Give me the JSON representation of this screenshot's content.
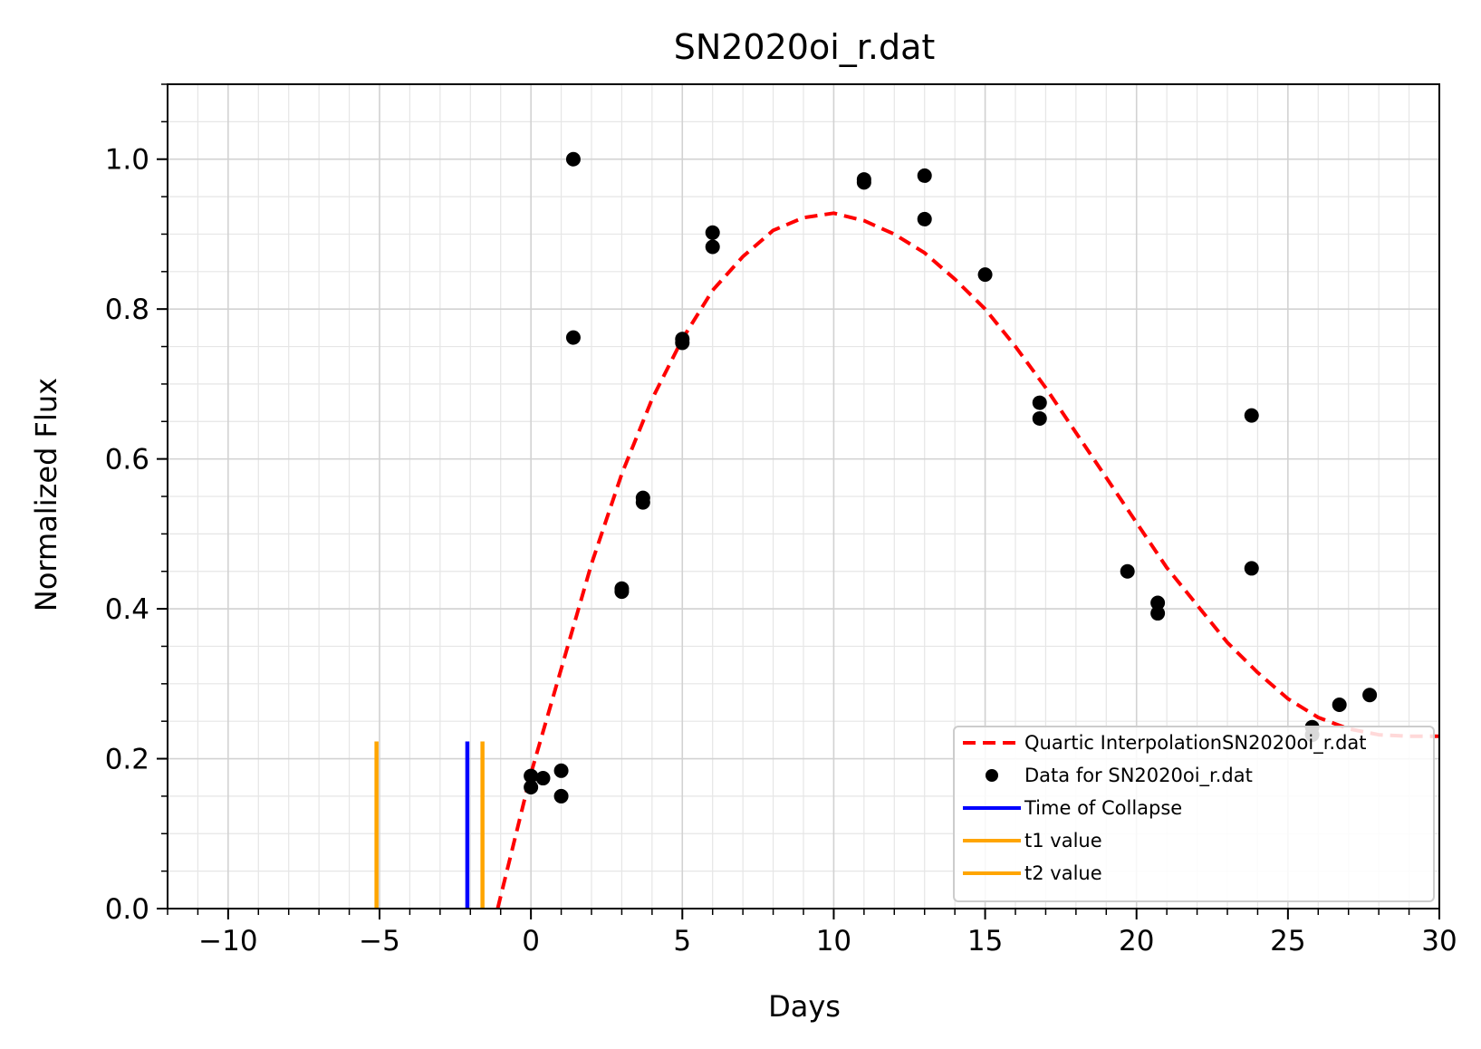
{
  "chart_data": {
    "type": "scatter",
    "title": "SN2020oi_r.dat",
    "xlabel": "Days",
    "ylabel": "Normalized Flux",
    "xlim": [
      -12,
      30
    ],
    "ylim": [
      0,
      1.1
    ],
    "x_ticks": [
      -10,
      -5,
      0,
      5,
      10,
      15,
      20,
      25,
      30
    ],
    "x_tick_labels": [
      "−10",
      "−5",
      "0",
      "5",
      "10",
      "15",
      "20",
      "25",
      "30"
    ],
    "y_ticks": [
      0.0,
      0.2,
      0.4,
      0.6,
      0.8,
      1.0
    ],
    "y_tick_labels": [
      "0.0",
      "0.2",
      "0.4",
      "0.6",
      "0.8",
      "1.0"
    ],
    "x_minor_step": 1,
    "y_minor_step": 0.05,
    "grid": true,
    "legend_position": "lower-right",
    "series": [
      {
        "name": "Quartic InterpolationSN2020oi_r.dat",
        "kind": "dashed-line",
        "color": "#ff0000",
        "x": [
          -1.1,
          0,
          1,
          2,
          3,
          4,
          5,
          6,
          7,
          8,
          9,
          10,
          11,
          12,
          13,
          14,
          15,
          16,
          17,
          18,
          19,
          20,
          21,
          22,
          23,
          24,
          25,
          26,
          27,
          28,
          29,
          30
        ],
        "y": [
          0.0,
          0.18,
          0.32,
          0.46,
          0.58,
          0.68,
          0.76,
          0.825,
          0.87,
          0.905,
          0.922,
          0.928,
          0.918,
          0.9,
          0.875,
          0.84,
          0.8,
          0.75,
          0.695,
          0.635,
          0.575,
          0.515,
          0.455,
          0.405,
          0.355,
          0.315,
          0.28,
          0.255,
          0.24,
          0.232,
          0.23,
          0.23
        ]
      },
      {
        "name": "Data for SN2020oi_r.dat",
        "kind": "points",
        "color": "#000000",
        "x": [
          0.0,
          0.0,
          0.4,
          1.0,
          1.0,
          1.4,
          1.4,
          3.0,
          3.0,
          3.7,
          3.7,
          5.0,
          5.0,
          6.0,
          6.0,
          11.0,
          11.0,
          13.0,
          13.0,
          15.0,
          16.8,
          16.8,
          19.7,
          20.7,
          20.7,
          23.8,
          23.8,
          25.8,
          25.8,
          26.7,
          27.7
        ],
        "y": [
          0.162,
          0.177,
          0.174,
          0.184,
          0.15,
          1.0,
          0.762,
          0.427,
          0.423,
          0.548,
          0.542,
          0.76,
          0.755,
          0.902,
          0.883,
          0.973,
          0.969,
          0.978,
          0.92,
          0.846,
          0.675,
          0.654,
          0.45,
          0.408,
          0.394,
          0.658,
          0.454,
          0.242,
          0.232,
          0.272,
          0.285
        ]
      },
      {
        "name": "Time of Collapse",
        "kind": "vline",
        "color": "#0000ff",
        "x": -2.1,
        "ymax": 0.223
      },
      {
        "name": "t1 value",
        "kind": "vline",
        "color": "#ffa500",
        "x": -5.1,
        "ymax": 0.223
      },
      {
        "name": "t2 value",
        "kind": "vline",
        "color": "#ffa500",
        "x": -1.6,
        "ymax": 0.223
      }
    ]
  }
}
